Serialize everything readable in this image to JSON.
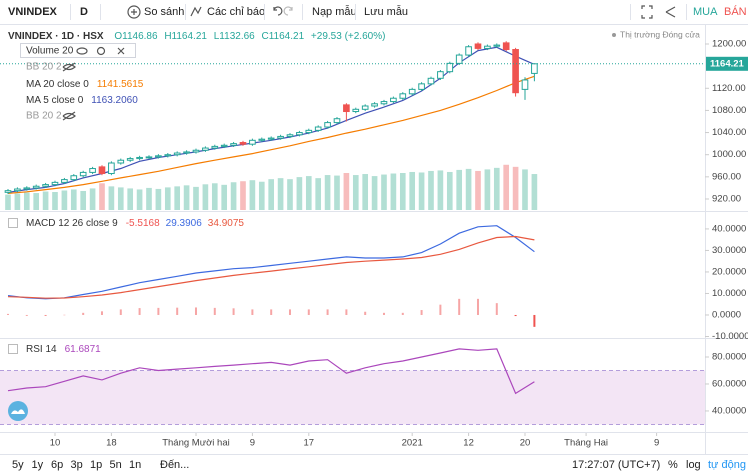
{
  "toolbar": {
    "symbol": "VNINDEX",
    "interval": "D",
    "compare": "So sánh",
    "indicators": "Các chỉ báo",
    "load": "Nạp mẫu",
    "save": "Lưu mẫu",
    "buy": "MUA",
    "sell": "BÁN"
  },
  "status": "Thị trường Đóng cửa",
  "chart_data": [
    {
      "type": "candlestick",
      "title": "VNINDEX · 1D · HSX",
      "legend_values": [
        "O1146.86",
        "H1164.21",
        "L1132.66",
        "C1164.21",
        "+29.53 (+2.60%)"
      ],
      "up_color": "#26a69a",
      "down_color": "#ef5350",
      "x": [
        0,
        1,
        2,
        3,
        4,
        5,
        6,
        7,
        8,
        9,
        10,
        11,
        12,
        13,
        14,
        15,
        16,
        17,
        18,
        19,
        20,
        21,
        22,
        23,
        24,
        25,
        26,
        27,
        28,
        29,
        30,
        31,
        32,
        33,
        34,
        35,
        36,
        37,
        38,
        39,
        40,
        41,
        42,
        43,
        44,
        45,
        46,
        47,
        48,
        49,
        50,
        51,
        52,
        53,
        54,
        55,
        56
      ],
      "open": [
        932,
        935,
        938,
        940,
        943,
        946,
        950,
        955,
        962,
        968,
        978,
        966,
        985,
        990,
        993,
        995,
        996,
        998,
        1000,
        1003,
        1005,
        1008,
        1012,
        1015,
        1017,
        1022,
        1019,
        1026,
        1028,
        1030,
        1033,
        1036,
        1040,
        1044,
        1050,
        1058,
        1090,
        1078,
        1082,
        1088,
        1092,
        1096,
        1102,
        1110,
        1118,
        1128,
        1138,
        1150,
        1165,
        1180,
        1200,
        1192,
        1196,
        1202,
        1190,
        1118,
        1146.86
      ],
      "high": [
        938,
        941,
        943,
        946,
        949,
        953,
        958,
        965,
        971,
        978,
        981,
        988,
        993,
        996,
        998,
        999,
        1001,
        1003,
        1006,
        1008,
        1011,
        1015,
        1018,
        1020,
        1023,
        1025,
        1029,
        1031,
        1033,
        1036,
        1039,
        1043,
        1047,
        1053,
        1061,
        1068,
        1093,
        1085,
        1091,
        1095,
        1099,
        1105,
        1113,
        1121,
        1131,
        1141,
        1153,
        1168,
        1183,
        1198,
        1203,
        1199,
        1201,
        1205,
        1193,
        1140,
        1164.21
      ],
      "low": [
        929,
        932,
        935,
        937,
        940,
        943,
        947,
        952,
        959,
        965,
        963,
        963,
        982,
        987,
        990,
        992,
        993,
        995,
        997,
        1000,
        1002,
        1005,
        1009,
        1012,
        1014,
        1016,
        1016,
        1023,
        1025,
        1027,
        1030,
        1033,
        1037,
        1041,
        1047,
        1055,
        1060,
        1075,
        1079,
        1085,
        1089,
        1093,
        1099,
        1107,
        1115,
        1125,
        1135,
        1147,
        1162,
        1177,
        1189,
        1189,
        1193,
        1187,
        1105,
        1099,
        1132.66
      ],
      "close": [
        935,
        938,
        940,
        943,
        946,
        950,
        955,
        962,
        968,
        975,
        966,
        985,
        990,
        993,
        995,
        996,
        998,
        1000,
        1003,
        1005,
        1008,
        1012,
        1015,
        1017,
        1020,
        1019,
        1026,
        1028,
        1030,
        1033,
        1036,
        1040,
        1044,
        1050,
        1058,
        1065,
        1078,
        1082,
        1088,
        1092,
        1096,
        1102,
        1110,
        1118,
        1128,
        1138,
        1150,
        1165,
        1180,
        1195,
        1192,
        1196,
        1198,
        1190,
        1112,
        1135,
        1164.21
      ],
      "volume": {
        "name": "Volume 20",
        "ylim": [
          0,
          1800
        ],
        "up_color": "#b2dfd4",
        "down_color": "#f7bcbc",
        "values": [
          150,
          160,
          170,
          165,
          180,
          175,
          190,
          200,
          185,
          210,
          260,
          230,
          220,
          210,
          200,
          215,
          205,
          220,
          230,
          240,
          225,
          250,
          260,
          245,
          270,
          280,
          290,
          275,
          300,
          310,
          300,
          320,
          330,
          310,
          340,
          335,
          360,
          340,
          350,
          330,
          345,
          355,
          360,
          370,
          365,
          380,
          385,
          370,
          390,
          400,
          380,
          395,
          410,
          440,
          420,
          395,
          350
        ]
      },
      "hidden_indicators": [
        "BB 20 2",
        "BB 20 2"
      ],
      "series": [
        {
          "name": "MA 20 close 0",
          "legend_value": "1141.5615",
          "color": "#f57c00",
          "x": [
            0,
            2,
            4,
            6,
            8,
            10,
            12,
            14,
            16,
            18,
            20,
            22,
            24,
            26,
            28,
            30,
            32,
            34,
            36,
            38,
            40,
            42,
            44,
            46,
            48,
            50,
            52,
            54,
            56
          ],
          "values": [
            930,
            933,
            937,
            941,
            946,
            952,
            958,
            964,
            970,
            977,
            984,
            990,
            996,
            1002,
            1009,
            1016,
            1024,
            1031,
            1039,
            1046,
            1054,
            1062,
            1071,
            1080,
            1091,
            1103,
            1116,
            1130,
            1141.5615
          ]
        },
        {
          "name": "MA 5 close 0",
          "legend_value": "1163.2060",
          "color": "#3f51b5",
          "x": [
            0,
            2,
            4,
            6,
            8,
            10,
            12,
            14,
            16,
            18,
            20,
            22,
            24,
            26,
            28,
            30,
            32,
            34,
            36,
            38,
            40,
            42,
            44,
            46,
            48,
            50,
            52,
            54,
            56
          ],
          "values": [
            932,
            937,
            941,
            948,
            958,
            966,
            975,
            988,
            995,
            1000,
            1005,
            1011,
            1016,
            1021,
            1026,
            1032,
            1039,
            1048,
            1062,
            1075,
            1086,
            1098,
            1115,
            1138,
            1166,
            1188,
            1194,
            1178,
            1163.206
          ]
        }
      ],
      "ylim": [
        900.1,
        1234.3
      ],
      "yticks": [
        {
          "value": 1200,
          "label": "1200.00"
        },
        {
          "value": 1120,
          "label": "1120.00"
        },
        {
          "value": 1080,
          "label": "1080.00"
        },
        {
          "value": 1040,
          "label": "1040.00"
        },
        {
          "value": 1000,
          "label": "1000.00"
        },
        {
          "value": 960,
          "label": "960.00"
        },
        {
          "value": 920,
          "label": "920.00"
        }
      ],
      "xlim": [
        -0.85,
        74.15
      ],
      "xticks": [
        {
          "value": 5,
          "label": "10"
        },
        {
          "value": 11,
          "label": "18"
        },
        {
          "value": 20,
          "label": "Tháng Mười hai"
        },
        {
          "value": 26,
          "label": "9"
        },
        {
          "value": 32,
          "label": "17"
        },
        {
          "value": 43,
          "label": "2021"
        },
        {
          "value": 49,
          "label": "12"
        },
        {
          "value": 55,
          "label": "20"
        },
        {
          "value": 61.5,
          "label": "Tháng Hai"
        },
        {
          "value": 69,
          "label": "9"
        }
      ],
      "grid": false
    },
    {
      "type": "macd",
      "title": "MACD 12 26 close 9",
      "x": [
        0,
        2,
        4,
        6,
        8,
        10,
        12,
        14,
        16,
        18,
        20,
        22,
        24,
        26,
        28,
        30,
        32,
        34,
        36,
        38,
        40,
        42,
        44,
        46,
        48,
        50,
        52,
        54,
        56
      ],
      "histogram": {
        "values": [
          0.5,
          -0.2,
          -0.3,
          0.1,
          1,
          1.7,
          2.6,
          3.2,
          3.3,
          3.4,
          3.5,
          3.3,
          3.1,
          2.6,
          2.6,
          2.6,
          2.6,
          2.6,
          2.6,
          1.5,
          1,
          1,
          2.3,
          4.8,
          7.5,
          7.5,
          5.5,
          -0.5,
          -5.5168
        ],
        "up_color": "#f6a5a5",
        "down_color": "#ef5350"
      },
      "series": [
        {
          "color": "#3d6ae0",
          "values": [
            9,
            8,
            7.5,
            8,
            9.5,
            11,
            13,
            15,
            16.5,
            18,
            19.5,
            20.5,
            21.5,
            22,
            23,
            24,
            25,
            26,
            27,
            26.5,
            26.5,
            27,
            29,
            33,
            38,
            41,
            41.5,
            36,
            29.3906
          ]
        },
        {
          "color": "#e8583f",
          "values": [
            8.5,
            8.2,
            7.8,
            7.9,
            8.5,
            9.3,
            10.4,
            11.8,
            13.2,
            14.6,
            16,
            17.2,
            18.4,
            19.4,
            20.4,
            21.4,
            22.4,
            23.4,
            24.4,
            25,
            25.5,
            26,
            26.7,
            28.2,
            30.5,
            33.5,
            36,
            36.5,
            34.9075
          ]
        }
      ],
      "ylim": [
        -10.7,
        47.4
      ],
      "yticks": [
        {
          "value": 40,
          "label": "40.0000"
        },
        {
          "value": 30,
          "label": "30.0000"
        },
        {
          "value": 20,
          "label": "20.0000"
        },
        {
          "value": 10,
          "label": "10.0000"
        },
        {
          "value": 0,
          "label": "0.0000"
        },
        {
          "value": -10,
          "label": "-10.0000"
        }
      ]
    },
    {
      "type": "rsi",
      "title": "RSI 14",
      "color": "#ab47bc",
      "band": [
        30,
        70
      ],
      "band_color": "#f3e5f5",
      "x": [
        0,
        2,
        4,
        6,
        8,
        10,
        12,
        14,
        16,
        18,
        20,
        22,
        24,
        26,
        28,
        30,
        32,
        34,
        36,
        38,
        40,
        42,
        44,
        46,
        48,
        50,
        52,
        54,
        56
      ],
      "values": [
        55,
        57,
        58,
        62,
        66,
        63,
        68,
        72,
        70,
        71,
        72,
        73,
        74,
        75,
        76,
        74,
        77,
        78,
        68,
        72,
        75,
        77,
        80,
        83,
        86,
        85,
        86,
        53,
        61.6871
      ],
      "ylim": [
        24.4,
        92.6
      ],
      "yticks": [
        {
          "value": 80,
          "label": "80.0000"
        },
        {
          "value": 60,
          "label": "60.0000"
        },
        {
          "value": 40,
          "label": "40.0000"
        }
      ]
    }
  ],
  "bottom_bar": {
    "ranges": [
      "5y",
      "1y",
      "6p",
      "3p",
      "1p",
      "5n",
      "1n"
    ],
    "goto": "Đến...",
    "time": "17:27:07 (UTC+7)",
    "percent": "%",
    "log": "log",
    "auto": "tự động"
  }
}
